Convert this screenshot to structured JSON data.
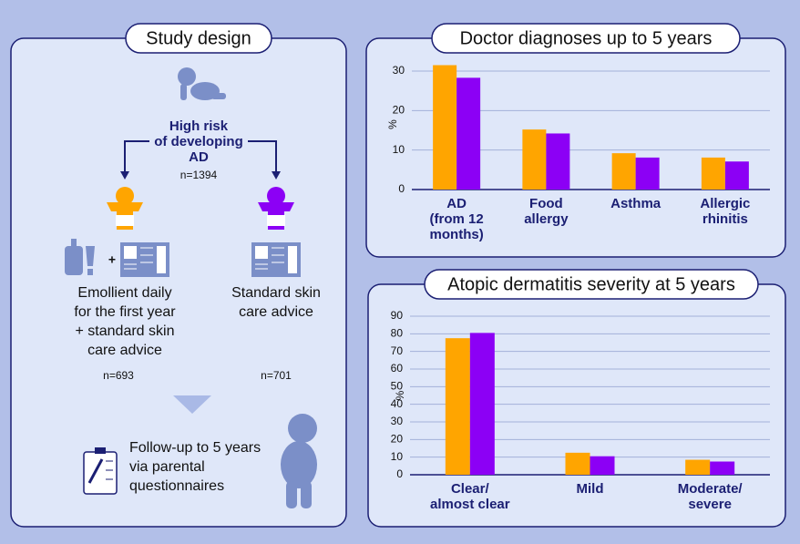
{
  "study_design": {
    "title": "Study design",
    "risk_label": [
      "High risk",
      "of developing",
      "AD"
    ],
    "total_n": "n=1394",
    "plus": "+",
    "intervention": [
      "Emollient daily",
      "for the first year",
      "+ standard skin",
      "care advice"
    ],
    "control": [
      "Standard skin",
      "care advice"
    ],
    "intervention_n": "n=693",
    "control_n": "n=701",
    "follow_up": [
      "Follow-up to 5 years",
      "via parental",
      "questionnaires"
    ]
  },
  "chart_data": [
    {
      "type": "bar",
      "title": "Doctor diagnoses up to 5 years",
      "y_label": "%",
      "categories": [
        "AD\n(from 12\nmonths)",
        "Food\nallergy",
        "Asthma",
        "Allergic\nrhinitis"
      ],
      "series": [
        {
          "color": "#ffa500",
          "values": [
            31.5,
            15.2,
            9.2,
            8.1
          ]
        },
        {
          "color": "#8c00f5",
          "values": [
            28.3,
            14.2,
            8.1,
            7.1
          ]
        }
      ],
      "ylim": [
        0,
        33
      ],
      "yticks": [
        0,
        10,
        20,
        30
      ],
      "grid": true
    },
    {
      "type": "bar",
      "title": "Atopic dermatitis severity at 5 years",
      "y_label": "%",
      "categories": [
        "Clear/\nalmost clear",
        "Mild",
        "Moderate/\nsevere"
      ],
      "series": [
        {
          "color": "#ffa500",
          "values": [
            77.5,
            12.5,
            8.5
          ]
        },
        {
          "color": "#8c00f5",
          "values": [
            80.5,
            10.5,
            7.5
          ]
        }
      ],
      "ylim": [
        0,
        90
      ],
      "yticks": [
        0,
        10,
        20,
        30,
        40,
        50,
        60,
        70,
        80,
        90
      ],
      "grid": true
    }
  ]
}
